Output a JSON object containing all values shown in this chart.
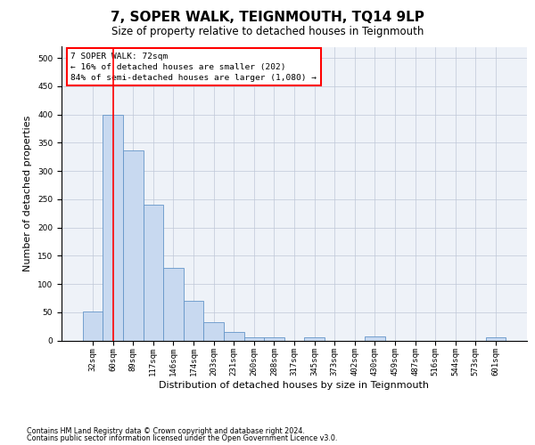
{
  "title": "7, SOPER WALK, TEIGNMOUTH, TQ14 9LP",
  "subtitle": "Size of property relative to detached houses in Teignmouth",
  "xlabel": "Distribution of detached houses by size in Teignmouth",
  "ylabel": "Number of detached properties",
  "bar_color": "#c8d9f0",
  "bar_edge_color": "#6495c8",
  "bar_edge_width": 0.6,
  "grid_color": "#c0c8d8",
  "bg_color": "#eef2f8",
  "categories": [
    "32sqm",
    "60sqm",
    "89sqm",
    "117sqm",
    "146sqm",
    "174sqm",
    "203sqm",
    "231sqm",
    "260sqm",
    "288sqm",
    "317sqm",
    "345sqm",
    "373sqm",
    "402sqm",
    "430sqm",
    "459sqm",
    "487sqm",
    "516sqm",
    "544sqm",
    "573sqm",
    "601sqm"
  ],
  "values": [
    51,
    400,
    337,
    240,
    128,
    70,
    33,
    15,
    5,
    5,
    0,
    5,
    0,
    0,
    7,
    0,
    0,
    0,
    0,
    0,
    5
  ],
  "ylim": [
    0,
    520
  ],
  "yticks": [
    0,
    50,
    100,
    150,
    200,
    250,
    300,
    350,
    400,
    450,
    500
  ],
  "red_line_x": 1.0,
  "annotation_text": "7 SOPER WALK: 72sqm\n← 16% of detached houses are smaller (202)\n84% of semi-detached houses are larger (1,080) →",
  "footnote1": "Contains HM Land Registry data © Crown copyright and database right 2024.",
  "footnote2": "Contains public sector information licensed under the Open Government Licence v3.0.",
  "title_fontsize": 11,
  "subtitle_fontsize": 8.5,
  "tick_fontsize": 6.5,
  "ylabel_fontsize": 8,
  "xlabel_fontsize": 8,
  "footnote_fontsize": 5.8
}
